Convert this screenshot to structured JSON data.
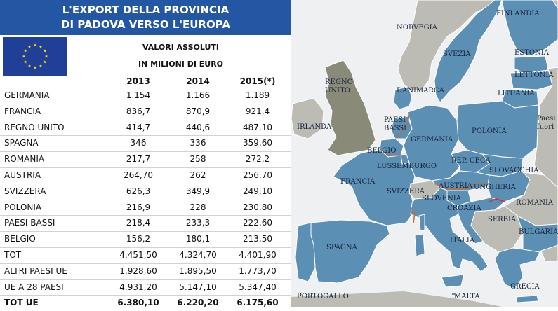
{
  "table": {
    "title_line1": "L'EXPORT DELLA PROVINCIA",
    "title_line2": "DI PADOVA VERSO L'EUROPA",
    "subtitle_line1": "VALORI ASSOLUTI",
    "subtitle_line2": "IN MILIONI DI EURO",
    "years": [
      "2013",
      "2014",
      "2015(*)"
    ],
    "rows": [
      {
        "label": "GERMANIA",
        "v2013": "1.154",
        "v2014": "1.166",
        "v2015": "1.189"
      },
      {
        "label": "FRANCIA",
        "v2013": "836,7",
        "v2014": "870,9",
        "v2015": "921,4"
      },
      {
        "label": "REGNO UNITO",
        "v2013": "414,7",
        "v2014": "440,6",
        "v2015": "487,10"
      },
      {
        "label": "SPAGNA",
        "v2013": "346",
        "v2014": "336",
        "v2015": "359,60"
      },
      {
        "label": "ROMANIA",
        "v2013": "217,7",
        "v2014": "258",
        "v2015": "272,2"
      },
      {
        "label": "AUSTRIA",
        "v2013": "264,70",
        "v2014": "262",
        "v2015": "256,70"
      },
      {
        "label": "SVIZZERA",
        "v2013": "626,3",
        "v2014": "349,9",
        "v2015": "249,10"
      },
      {
        "label": "POLONIA",
        "v2013": "216,9",
        "v2014": "228",
        "v2015": "230,80"
      },
      {
        "label": "PAESI BASSI",
        "v2013": "218,4",
        "v2014": "233,3",
        "v2015": "222,60"
      },
      {
        "label": "BELGIO",
        "v2013": "156,2",
        "v2014": "180,1",
        "v2015": "213,50"
      },
      {
        "label": "TOT",
        "v2013": "4.451,50",
        "v2014": "4.324,70",
        "v2015": "4.401,90"
      },
      {
        "label": "ALTRI PAESI UE",
        "v2013": "1.928,60",
        "v2014": "1.895,50",
        "v2015": "1.773,70"
      },
      {
        "label": "UE A 28 PAESI",
        "v2013": "4.931,20",
        "v2014": "5.147,10",
        "v2015": "5.347,40"
      },
      {
        "label": "TOT UE",
        "v2013": "6.380,10",
        "v2014": "6.220,20",
        "v2015": "6.175,60",
        "bold": true
      }
    ]
  },
  "map": {
    "labels": {
      "finlandia": "FINLANDIA",
      "norvegia": "NORVEGIA",
      "svezia": "SVEZIA",
      "estonia": "ESTONIA",
      "lettonia": "LETTONIA",
      "lituania": "LITUANIA",
      "danimarca": "DANIMARCA",
      "regno": "REGNO",
      "unito": "UNITO",
      "irlanda": "IRLANDA",
      "paesi": "PAESI",
      "bassi": "BASSI",
      "germania": "GERMANIA",
      "polonia": "POLONIA",
      "paesi_fuori_1": "Paesi e",
      "paesi_fuori_2": "fuori",
      "belgio": "BELGIO",
      "lussemburgo": "LUSSEMBURGO",
      "rep_ceca": "REP. CECA",
      "slovacchia": "SLOVACCHIA",
      "francia": "FRANCIA",
      "austria": "AUSTRIA",
      "ungheria": "UNGHERIA",
      "svizzera": "SVIZZERA",
      "slovenia": "SLOVENIA",
      "romania": "ROMANIA",
      "croazia": "CROAZIA",
      "serbia": "SERBIA",
      "bulgaria": "BULGARIA",
      "italia": "ITALIA",
      "spagna": "SPAGNA",
      "portogallo": "PORTOGALLO",
      "malta": "MALTA",
      "grecia": "GRECIA"
    },
    "colors": {
      "sea": "#eef0f2",
      "eu": "#5b8fb4",
      "non_eu": "#bcbcb5",
      "uk": "#8a8a78",
      "highlight_border": "#c46a3e"
    }
  },
  "flag": {
    "color": "#1f3f98",
    "star_color": "#ffdd00"
  }
}
